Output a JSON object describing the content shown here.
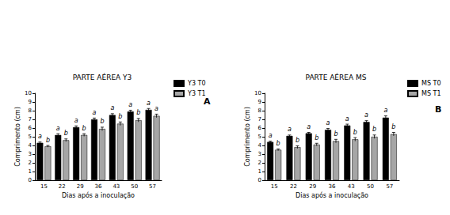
{
  "chart_data": [
    {
      "type": "bar",
      "title": "PARTE AÉREA Y3",
      "panel_label": "A",
      "x_label": "Dias após a inoculação",
      "y_label": "Comprimento (cm)",
      "categories": [
        "15",
        "22",
        "29",
        "36",
        "43",
        "50",
        "57"
      ],
      "series": [
        {
          "name": "Y3 T0",
          "color": "#000000",
          "values": [
            4.3,
            5.2,
            6.1,
            7.0,
            7.5,
            7.9,
            8.1
          ],
          "errors": [
            0.1,
            0.15,
            0.15,
            0.15,
            0.15,
            0.15,
            0.15
          ],
          "letters": [
            "a",
            "a",
            "a",
            "a",
            "a",
            "a",
            "a"
          ]
        },
        {
          "name": "Y3 T1",
          "color": "#a6a6a6",
          "values": [
            3.9,
            4.6,
            5.2,
            5.9,
            6.5,
            6.9,
            7.4
          ],
          "errors": [
            0.1,
            0.15,
            0.15,
            0.2,
            0.2,
            0.2,
            0.2
          ],
          "letters": [
            "b",
            "b",
            "b",
            "b",
            "b",
            "b",
            "a"
          ]
        }
      ],
      "ylim": [
        0,
        10
      ],
      "yticks": [
        0,
        1,
        2,
        3,
        4,
        5,
        6,
        7,
        8,
        9,
        10
      ],
      "grid": false,
      "legend": "right"
    },
    {
      "type": "bar",
      "title": "PARTE AÉREA MS",
      "panel_label": "B",
      "x_label": "Dias após a inoculação",
      "y_label": "Comprimento (cm)",
      "categories": [
        "15",
        "22",
        "29",
        "36",
        "43",
        "50",
        "57"
      ],
      "series": [
        {
          "name": "MS T0",
          "color": "#000000",
          "values": [
            4.4,
            5.1,
            5.4,
            5.8,
            6.3,
            6.7,
            7.2
          ],
          "errors": [
            0.1,
            0.1,
            0.1,
            0.15,
            0.15,
            0.15,
            0.2
          ],
          "letters": [
            "a",
            "a",
            "a",
            "a",
            "a",
            "a",
            "a"
          ]
        },
        {
          "name": "MS T1",
          "color": "#a6a6a6",
          "values": [
            3.5,
            3.8,
            4.1,
            4.5,
            4.7,
            5.0,
            5.3
          ],
          "errors": [
            0.1,
            0.15,
            0.15,
            0.2,
            0.2,
            0.2,
            0.2
          ],
          "letters": [
            "b",
            "b",
            "b",
            "b",
            "b",
            "b",
            "b"
          ]
        }
      ],
      "ylim": [
        0,
        10
      ],
      "yticks": [
        0,
        1,
        2,
        3,
        4,
        5,
        6,
        7,
        8,
        9,
        10
      ],
      "grid": false,
      "legend": "right"
    }
  ]
}
